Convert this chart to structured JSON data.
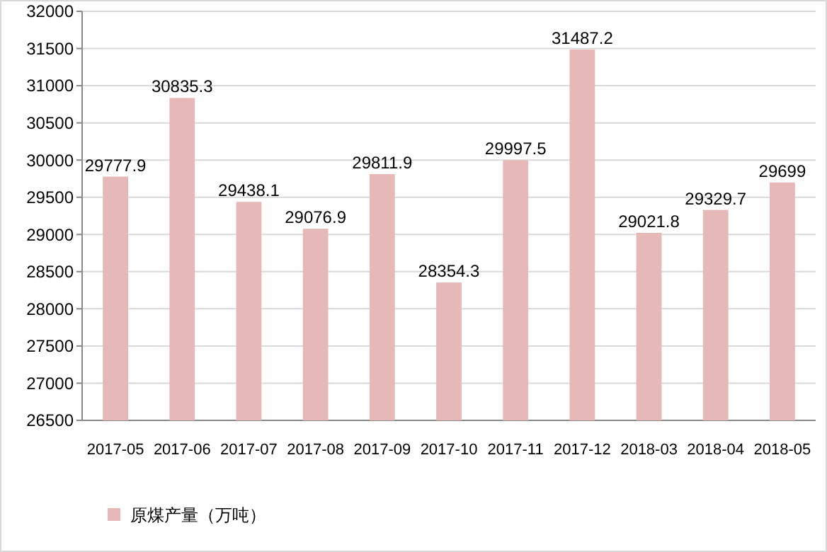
{
  "chart_data": {
    "type": "bar",
    "categories": [
      "2017-05",
      "2017-06",
      "2017-07",
      "2017-08",
      "2017-09",
      "2017-10",
      "2017-11",
      "2017-12",
      "2018-03",
      "2018-04",
      "2018-05"
    ],
    "series": [
      {
        "name": "原煤产量（万吨）",
        "color": "#e6b9b8",
        "values": [
          29777.9,
          30835.3,
          29438.1,
          29076.9,
          29811.9,
          28354.3,
          29997.5,
          31487.2,
          29021.8,
          29329.7,
          29699
        ]
      }
    ],
    "ylim": [
      26500,
      32000
    ],
    "yticks": [
      26500,
      27000,
      27500,
      28000,
      28500,
      29000,
      29500,
      30000,
      30500,
      31000,
      31500,
      32000
    ],
    "grid": "y",
    "legend": "bottom left",
    "data_labels": true
  }
}
